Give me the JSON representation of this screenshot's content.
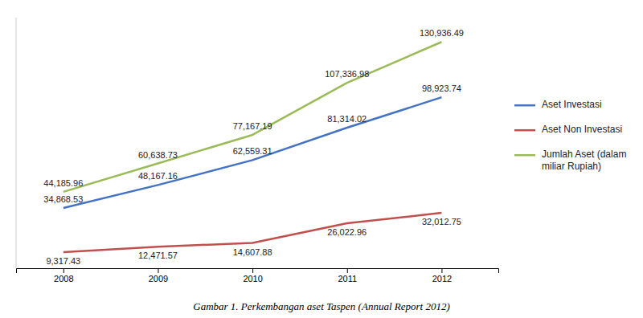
{
  "chart_data": {
    "type": "line",
    "caption": "Gambar 1. Perkembangan aset Taspen (Annual Report 2012)",
    "x": [
      2008,
      2009,
      2010,
      2011,
      2012
    ],
    "series": [
      {
        "name": "Aset Investasi",
        "color": "#4472C4",
        "values": [
          34868.53,
          48167.16,
          62559.31,
          81314.02,
          98923.74
        ],
        "value_labels": [
          "34,868.53",
          "48,167.16",
          "62,559.31",
          "81,314.02",
          "98,923.74"
        ]
      },
      {
        "name": "Aset Non Investasi",
        "color": "#C0504D",
        "values": [
          9317.43,
          12471.57,
          14607.88,
          26022.96,
          32012.75
        ],
        "value_labels": [
          "9,317.43",
          "12,471.57",
          "14,607.88",
          "26,022.96",
          "32,012.75"
        ]
      },
      {
        "name": "Jumlah Aset (dalam\nmiliar Rupiah)",
        "color": "#9BBB59",
        "values": [
          44185.96,
          60638.73,
          77167.19,
          107336.98,
          130936.49
        ],
        "value_labels": [
          "44,185.96",
          "60,638.73",
          "77,167.19",
          "107,336.98",
          "130,936.49"
        ]
      }
    ],
    "xlim": [
      2007.5,
      2012.6
    ],
    "xticks": [
      2008,
      2009,
      2010,
      2011,
      2012
    ],
    "ylim": [
      0,
      145000
    ],
    "tick_labels": "x",
    "data_labels": true,
    "grid": false,
    "legend": "right"
  }
}
